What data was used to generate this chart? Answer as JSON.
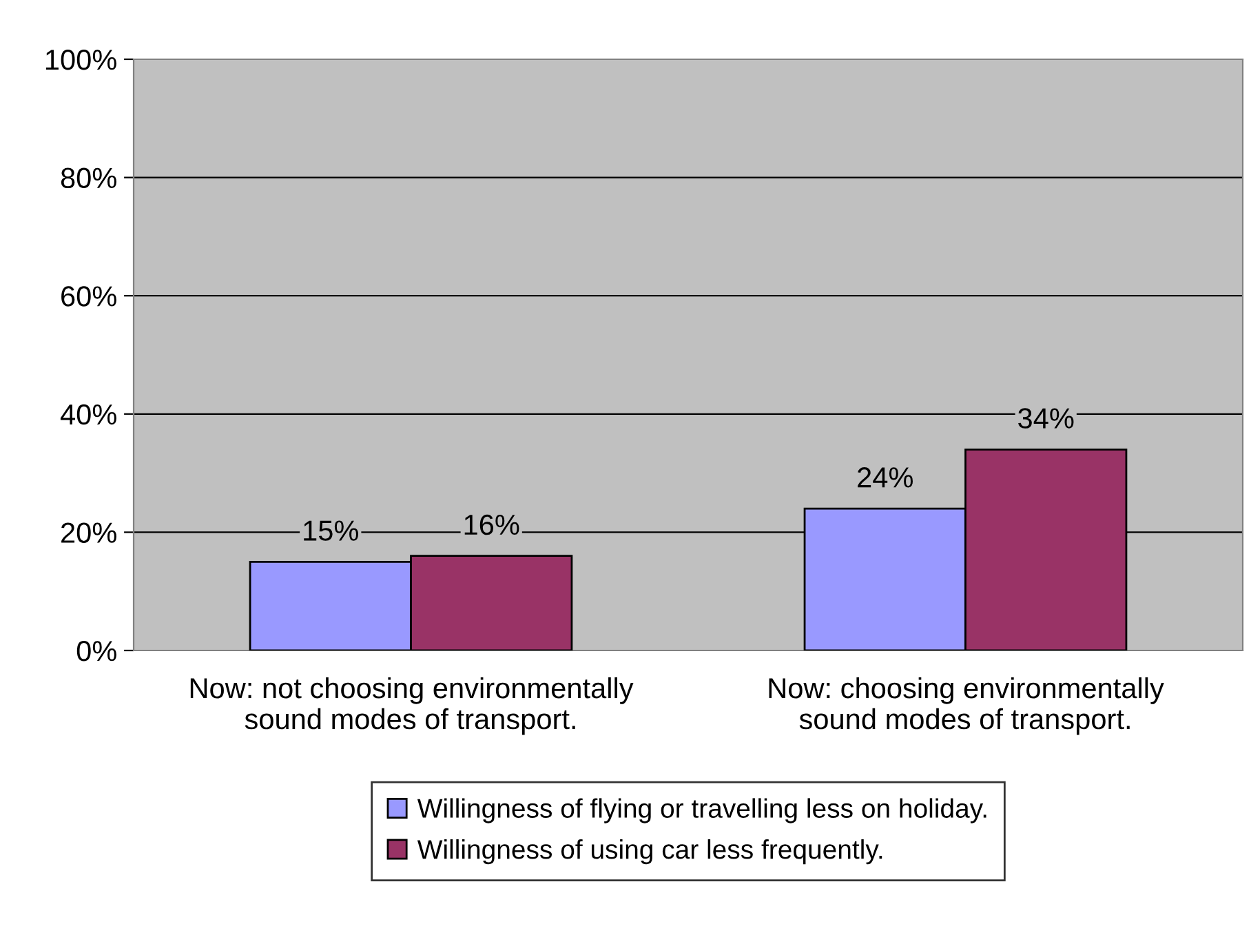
{
  "chart_data": {
    "type": "bar",
    "categories": [
      "Now: not choosing environmentally sound modes of transport.",
      "Now: choosing environmentally sound modes of transport."
    ],
    "series": [
      {
        "name": "Willingness of flying or travelling less on holiday.",
        "color": "#9999ff",
        "values": [
          15,
          24
        ],
        "value_labels": [
          "15%",
          "24%"
        ]
      },
      {
        "name": "Willingness of using car less frequently.",
        "color": "#993366",
        "values": [
          16,
          34
        ],
        "value_labels": [
          "16%",
          "34%"
        ]
      }
    ],
    "ylim": [
      0,
      100
    ],
    "yticks": [
      {
        "value": 0,
        "label": "0%"
      },
      {
        "value": 20,
        "label": "20%"
      },
      {
        "value": 40,
        "label": "40%"
      },
      {
        "value": 60,
        "label": "60%"
      },
      {
        "value": 80,
        "label": "80%"
      },
      {
        "value": 100,
        "label": "100%"
      }
    ],
    "grid": "y",
    "legend": "bottom"
  }
}
